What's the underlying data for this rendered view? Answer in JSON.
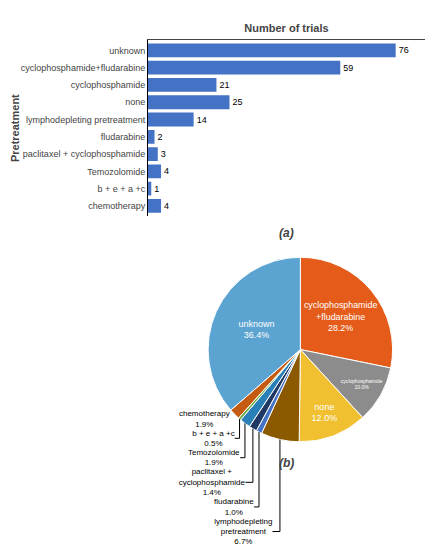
{
  "chart_data": [
    {
      "type": "bar",
      "orientation": "horizontal",
      "title": "(a)",
      "xlabel": "Number of trials",
      "ylabel": "Pretreatment",
      "categories": [
        "unknown",
        "cyclophosphamide+fludarabine",
        "cyclophosphamide",
        "none",
        "lymphodepleting pretreatment",
        "fludarabine",
        "paclitaxel + cyclophosphamide",
        "Temozolomide",
        "b + e + a +c",
        "chemotherapy"
      ],
      "values": [
        76,
        59,
        21,
        25,
        14,
        2,
        3,
        4,
        1,
        4
      ],
      "color": "#4472C4",
      "xlim": [
        0,
        85
      ],
      "tick_labels": "y",
      "grid": false,
      "data_labels": true
    },
    {
      "type": "pie",
      "title": "(b)",
      "categories": [
        "cyclophosphamide\n+fludarabine",
        "cyclophosphamide",
        "none",
        "lymphodepleting\npretreatment",
        "fludarabine",
        "paclitaxel +\ncyclophosphamide",
        "Temozolomide",
        "b + e + a +c",
        "chemotherapy",
        "unknown"
      ],
      "values": [
        28.2,
        10.0,
        12.0,
        6.7,
        1.0,
        1.4,
        1.9,
        0.5,
        1.9,
        36.4
      ],
      "value_labels": [
        "28.2%",
        "10.0%",
        "12.0%",
        "6.7%",
        "1.0%",
        "1.4%",
        "1.9%",
        "0.5%",
        "1.9%",
        "36.4%"
      ],
      "colors": [
        "#E55C1A",
        "#8C8C8C",
        "#F0C030",
        "#8B5A00",
        "#4472C4",
        "#1F3864",
        "#2980B9",
        "#70AD47",
        "#C55A11",
        "#5BA3D0"
      ],
      "data_labels": true
    }
  ]
}
